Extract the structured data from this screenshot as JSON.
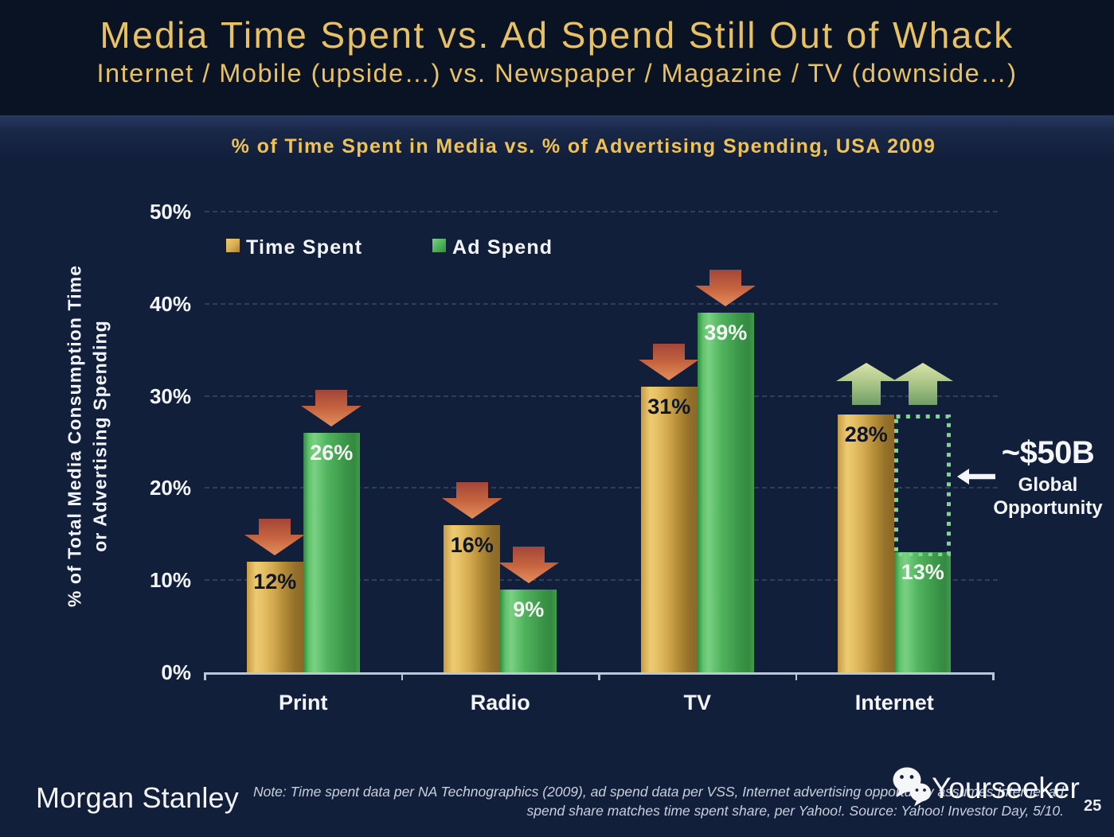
{
  "header": {
    "title": "Media Time Spent vs. Ad Spend Still Out of Whack",
    "subtitle": "Internet / Mobile (upside…) vs. Newspaper / Magazine / TV (downside…)"
  },
  "chart_data": {
    "type": "bar",
    "title": "% of Time Spent in Media vs. % of Advertising Spending, USA 2009",
    "categories": [
      "Print",
      "Radio",
      "TV",
      "Internet"
    ],
    "series": [
      {
        "name": "Time Spent",
        "color": "gold",
        "values": [
          12,
          16,
          31,
          28
        ],
        "labels": [
          "12%",
          "16%",
          "31%",
          "28%"
        ],
        "trend": [
          "down",
          "down",
          "down",
          "up"
        ]
      },
      {
        "name": "Ad Spend",
        "color": "green",
        "values": [
          26,
          9,
          39,
          13
        ],
        "labels": [
          "26%",
          "9%",
          "39%",
          "13%"
        ],
        "trend": [
          "down",
          "down",
          "down",
          "up"
        ]
      }
    ],
    "ylabel_line1": "% of Total Media Consumption Time",
    "ylabel_line2": "or Advertising Spending",
    "yticks": [
      0,
      10,
      20,
      30,
      40,
      50
    ],
    "ytick_labels": [
      "0%",
      "10%",
      "20%",
      "30%",
      "40%",
      "50%"
    ],
    "ylim": [
      0,
      50
    ],
    "grid": "dashed-horizontal",
    "legend_position": "top-left-inside",
    "annotation": {
      "headline": "~$50B",
      "line2": "Global",
      "line3": "Opportunity",
      "category": "Internet",
      "series": "Ad Spend",
      "from_value": 13,
      "to_value": 28
    },
    "colors": {
      "time_spent": "#d8ac52",
      "ad_spend": "#4caf5c",
      "down_arrow": "#c2603f",
      "up_arrow": "#a6c487",
      "opportunity_outline": "#7fd98c"
    }
  },
  "footer": {
    "brand": "Morgan Stanley",
    "note_line1": "Note: Time spent data per NA Technographics (2009), ad spend data per VSS, Internet advertising opportunity assumes Internet ad",
    "note_line2": "spend share matches time spent share, per Yahoo!. Source: Yahoo! Investor Day, 5/10.",
    "watermark": "Yourseeker",
    "page_number": "25"
  }
}
